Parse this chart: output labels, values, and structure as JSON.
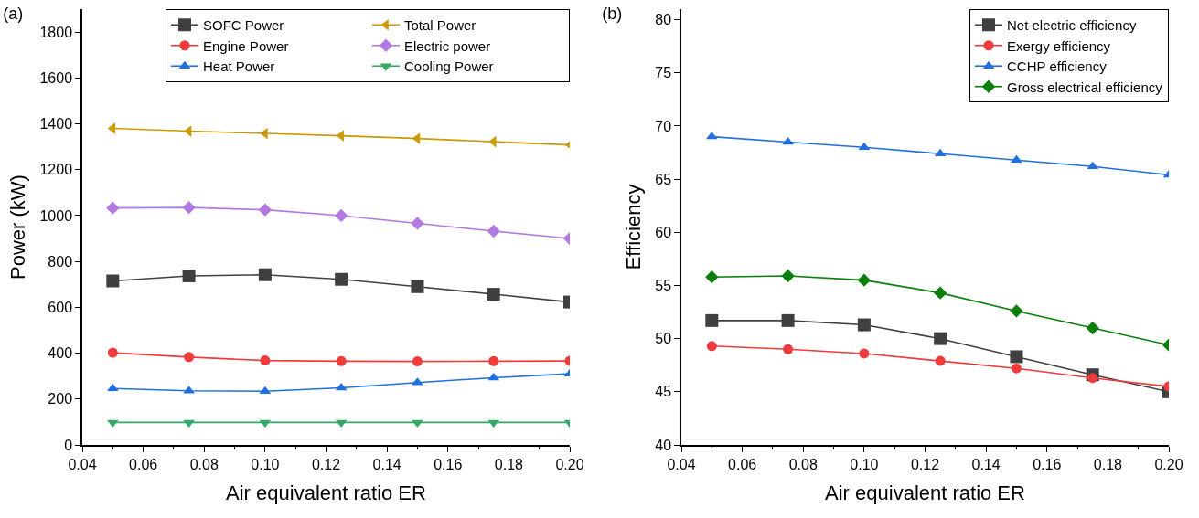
{
  "chart_data": [
    {
      "type": "line",
      "title": "(a)",
      "xlabel": "Air equivalent ratio ER",
      "ylabel": "Power (kW)",
      "x": [
        0.05,
        0.075,
        0.1,
        0.125,
        0.15,
        0.175,
        0.2
      ],
      "xlim": [
        0.04,
        0.2
      ],
      "xticks": [
        {
          "value": 0.04,
          "label": "0.04"
        },
        {
          "value": 0.06,
          "label": "0.06"
        },
        {
          "value": 0.08,
          "label": "0.08"
        },
        {
          "value": 0.1,
          "label": "0.10"
        },
        {
          "value": 0.12,
          "label": "0.12"
        },
        {
          "value": 0.14,
          "label": "0.14"
        },
        {
          "value": 0.16,
          "label": "0.16"
        },
        {
          "value": 0.18,
          "label": "0.18"
        },
        {
          "value": 0.2,
          "label": "0.20"
        }
      ],
      "ylim": [
        0,
        1900
      ],
      "yticks": [
        0,
        200,
        400,
        600,
        800,
        1000,
        1200,
        1400,
        1600,
        1800
      ],
      "grid": false,
      "legend": "top right",
      "series": [
        {
          "name": "SOFC Power",
          "color": "#404040",
          "marker": "square",
          "values": [
            715,
            737,
            742,
            722,
            690,
            657,
            623
          ]
        },
        {
          "name": "Total Power",
          "color": "#cc9a06",
          "marker": "triangle-left",
          "values": [
            1380,
            1368,
            1358,
            1348,
            1336,
            1322,
            1308
          ]
        },
        {
          "name": "Engine Power",
          "color": "#ef3b3b",
          "marker": "circle",
          "values": [
            402,
            383,
            368,
            365,
            364,
            365,
            366
          ]
        },
        {
          "name": "Electric power",
          "color": "#b07ae0",
          "marker": "diamond",
          "values": [
            1033,
            1035,
            1025,
            1000,
            966,
            932,
            900
          ]
        },
        {
          "name": "Heat Power",
          "color": "#1f6fe0",
          "marker": "triangle",
          "values": [
            246,
            236,
            234,
            249,
            272,
            293,
            310
          ]
        },
        {
          "name": "Cooling Power",
          "color": "#33a867",
          "marker": "triangle-down",
          "values": [
            98,
            98,
            98,
            98,
            98,
            98,
            98
          ]
        }
      ]
    },
    {
      "type": "line",
      "title": "(b)",
      "xlabel": "Air equivalent ratio ER",
      "ylabel": "Efficiency",
      "x": [
        0.05,
        0.075,
        0.1,
        0.125,
        0.15,
        0.175,
        0.2
      ],
      "xlim": [
        0.04,
        0.2
      ],
      "xticks": [
        {
          "value": 0.04,
          "label": "0.04"
        },
        {
          "value": 0.06,
          "label": "0.06"
        },
        {
          "value": 0.08,
          "label": "0.08"
        },
        {
          "value": 0.1,
          "label": "0.10"
        },
        {
          "value": 0.12,
          "label": "0.12"
        },
        {
          "value": 0.14,
          "label": "0.14"
        },
        {
          "value": 0.16,
          "label": "0.16"
        },
        {
          "value": 0.18,
          "label": "0.18"
        },
        {
          "value": 0.2,
          "label": "0.20"
        }
      ],
      "ylim": [
        40,
        81
      ],
      "yticks": [
        40,
        45,
        50,
        55,
        60,
        65,
        70,
        75,
        80
      ],
      "grid": false,
      "legend": "top right",
      "series": [
        {
          "name": "Net electric efficiency",
          "color": "#404040",
          "marker": "square",
          "values": [
            51.7,
            51.7,
            51.3,
            50.0,
            48.3,
            46.6,
            45.0
          ]
        },
        {
          "name": "Exergy efficiency",
          "color": "#ef3b3b",
          "marker": "circle",
          "values": [
            49.3,
            49.0,
            48.6,
            47.9,
            47.2,
            46.3,
            45.5
          ]
        },
        {
          "name": "CCHP efficiency",
          "color": "#1f6fe0",
          "marker": "triangle",
          "values": [
            69.0,
            68.5,
            68.0,
            67.4,
            66.8,
            66.2,
            65.4
          ]
        },
        {
          "name": "Gross electrical efficiency",
          "color": "#0a7f0a",
          "marker": "diamond",
          "values": [
            55.8,
            55.9,
            55.5,
            54.3,
            52.6,
            51.0,
            49.4
          ]
        }
      ]
    }
  ]
}
